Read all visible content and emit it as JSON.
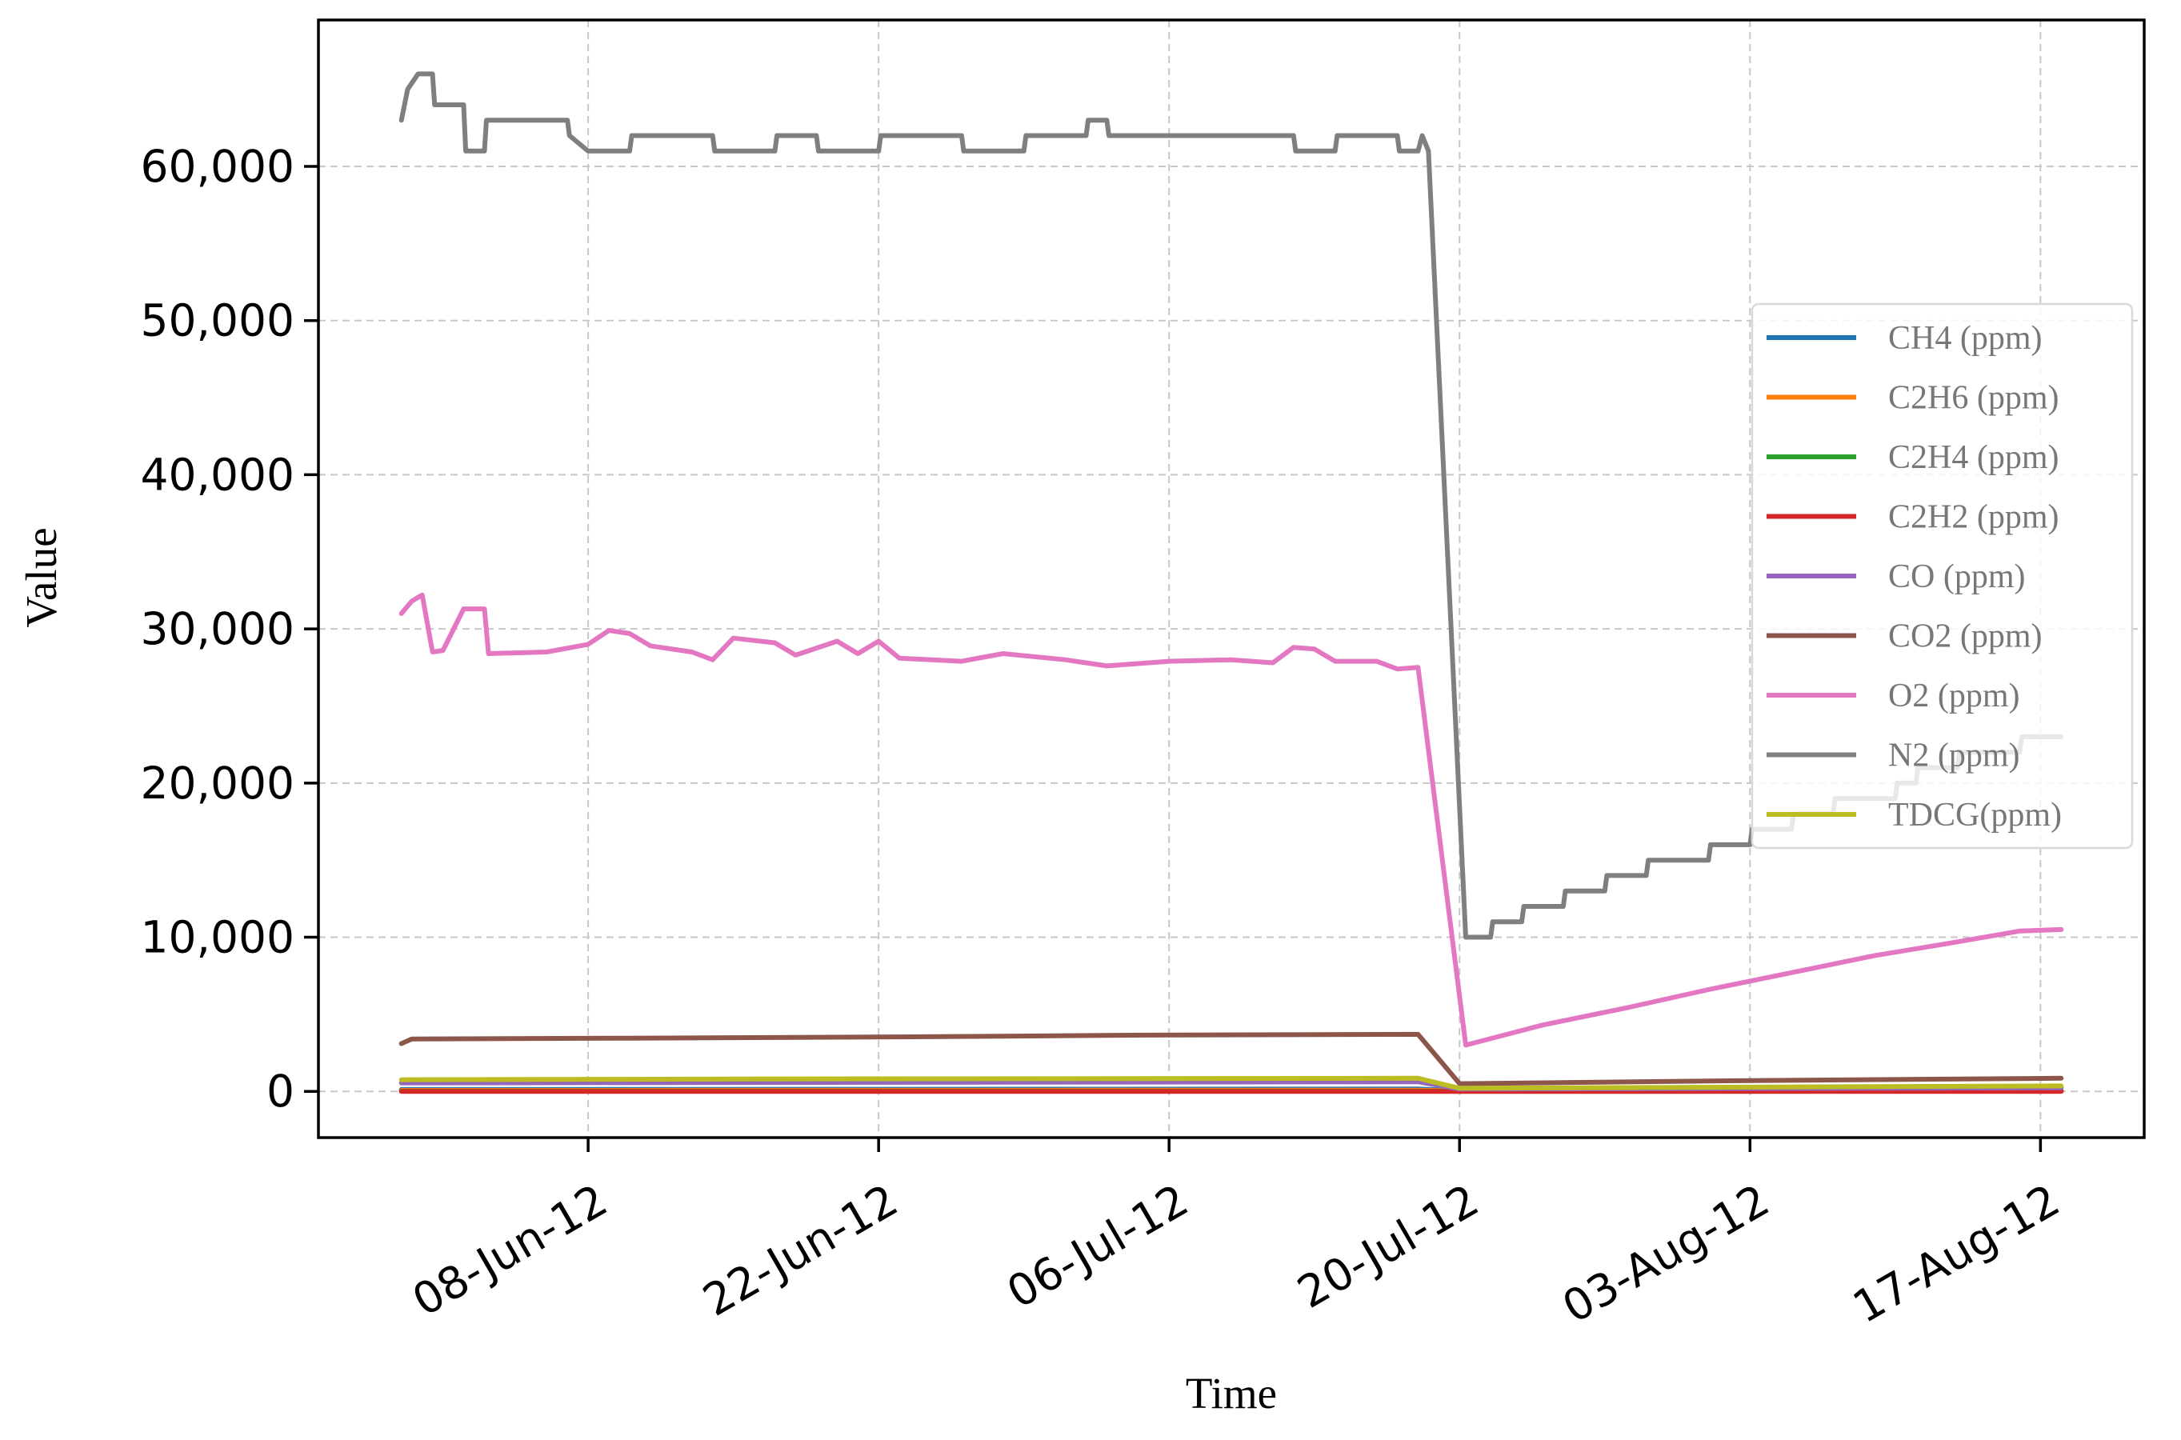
{
  "chart_data": {
    "type": "line",
    "xlabel": "Time",
    "ylabel": "Value",
    "ylim": [
      -3000,
      69500
    ],
    "xlim": [
      "2012-05-26",
      "2012-08-22"
    ],
    "x_ticks": [
      {
        "date": "2012-06-08",
        "label": "08-Jun-12"
      },
      {
        "date": "2012-06-22",
        "label": "22-Jun-12"
      },
      {
        "date": "2012-07-06",
        "label": "06-Jul-12"
      },
      {
        "date": "2012-07-20",
        "label": "20-Jul-12"
      },
      {
        "date": "2012-08-03",
        "label": "03-Aug-12"
      },
      {
        "date": "2012-08-17",
        "label": "17-Aug-12"
      }
    ],
    "y_ticks": [
      {
        "value": 0,
        "label": "0"
      },
      {
        "value": 10000,
        "label": "10,000"
      },
      {
        "value": 20000,
        "label": "20,000"
      },
      {
        "value": 30000,
        "label": "30,000"
      },
      {
        "value": 40000,
        "label": "40,000"
      },
      {
        "value": 50000,
        "label": "50,000"
      },
      {
        "value": 60000,
        "label": "60,000"
      }
    ],
    "grid": true,
    "legend_position": "center-right",
    "series": [
      {
        "name": "CH4 (ppm)",
        "color": "#1f77b4",
        "points": [
          [
            "2012-05-30",
            120
          ],
          [
            "2012-07-18",
            150
          ],
          [
            "2012-07-20",
            40
          ],
          [
            "2012-08-18",
            60
          ]
        ]
      },
      {
        "name": "C2H6 (ppm)",
        "color": "#ff7f0e",
        "points": [
          [
            "2012-05-30",
            60
          ],
          [
            "2012-07-18",
            80
          ],
          [
            "2012-07-20",
            20
          ],
          [
            "2012-08-18",
            30
          ]
        ]
      },
      {
        "name": "C2H4 (ppm)",
        "color": "#2ca02c",
        "points": [
          [
            "2012-05-30",
            10
          ],
          [
            "2012-07-18",
            12
          ],
          [
            "2012-07-20",
            5
          ],
          [
            "2012-08-18",
            8
          ]
        ]
      },
      {
        "name": "C2H2 (ppm)",
        "color": "#d62728",
        "points": [
          [
            "2012-05-30",
            0
          ],
          [
            "2012-08-18",
            0
          ]
        ]
      },
      {
        "name": "CO (ppm)",
        "color": "#9467bd",
        "points": [
          [
            "2012-05-30",
            550
          ],
          [
            "2012-07-18",
            620
          ],
          [
            "2012-07-20",
            150
          ],
          [
            "2012-08-18",
            230
          ]
        ]
      },
      {
        "name": "CO2 (ppm)",
        "color": "#8c564b",
        "points": [
          [
            "2012-05-30",
            3100
          ],
          [
            "2012-05-30.5",
            3400
          ],
          [
            "2012-06-10",
            3450
          ],
          [
            "2012-06-25",
            3550
          ],
          [
            "2012-07-05",
            3650
          ],
          [
            "2012-07-18",
            3700
          ],
          [
            "2012-07-20",
            500
          ],
          [
            "2012-08-03",
            700
          ],
          [
            "2012-08-18",
            850
          ]
        ]
      },
      {
        "name": "O2 (ppm)",
        "color": "#e377c2",
        "points": [
          [
            "2012-05-30",
            31000
          ],
          [
            "2012-05-30.5",
            31800
          ],
          [
            "2012-05-31",
            32200
          ],
          [
            "2012-05-31.5",
            28500
          ],
          [
            "2012-06-01",
            28600
          ],
          [
            "2012-06-02",
            31300
          ],
          [
            "2012-06-03",
            31300
          ],
          [
            "2012-06-03.2",
            28400
          ],
          [
            "2012-06-06",
            28500
          ],
          [
            "2012-06-08",
            29000
          ],
          [
            "2012-06-09",
            29900
          ],
          [
            "2012-06-10",
            29700
          ],
          [
            "2012-06-11",
            28900
          ],
          [
            "2012-06-13",
            28500
          ],
          [
            "2012-06-14",
            28000
          ],
          [
            "2012-06-15",
            29400
          ],
          [
            "2012-06-17",
            29100
          ],
          [
            "2012-06-18",
            28300
          ],
          [
            "2012-06-20",
            29200
          ],
          [
            "2012-06-21",
            28400
          ],
          [
            "2012-06-22",
            29200
          ],
          [
            "2012-06-23",
            28100
          ],
          [
            "2012-06-26",
            27900
          ],
          [
            "2012-06-28",
            28400
          ],
          [
            "2012-07-01",
            28000
          ],
          [
            "2012-07-03",
            27600
          ],
          [
            "2012-07-06",
            27900
          ],
          [
            "2012-07-09",
            28000
          ],
          [
            "2012-07-11",
            27800
          ],
          [
            "2012-07-12",
            28800
          ],
          [
            "2012-07-13",
            28700
          ],
          [
            "2012-07-14",
            27900
          ],
          [
            "2012-07-16",
            27900
          ],
          [
            "2012-07-17",
            27400
          ],
          [
            "2012-07-18",
            27500
          ],
          [
            "2012-07-20.3",
            3000
          ],
          [
            "2012-07-24",
            4300
          ],
          [
            "2012-07-28",
            5400
          ],
          [
            "2012-08-01",
            6600
          ],
          [
            "2012-08-05",
            7700
          ],
          [
            "2012-08-09",
            8800
          ],
          [
            "2012-08-13",
            9700
          ],
          [
            "2012-08-16",
            10400
          ],
          [
            "2012-08-18",
            10500
          ]
        ]
      },
      {
        "name": "N2 (ppm)",
        "color": "#7f7f7f",
        "points": [
          [
            "2012-05-30",
            63000
          ],
          [
            "2012-05-30.3",
            65000
          ],
          [
            "2012-05-30.8",
            66000
          ],
          [
            "2012-05-31.5",
            66000
          ],
          [
            "2012-05-31.6",
            64000
          ],
          [
            "2012-06-02",
            64000
          ],
          [
            "2012-06-02.1",
            61000
          ],
          [
            "2012-06-03",
            61000
          ],
          [
            "2012-06-03.1",
            63000
          ],
          [
            "2012-06-07",
            63000
          ],
          [
            "2012-06-07.1",
            62000
          ],
          [
            "2012-06-08",
            61000
          ],
          [
            "2012-06-10",
            61000
          ],
          [
            "2012-06-10.1",
            62000
          ],
          [
            "2012-06-14",
            62000
          ],
          [
            "2012-06-14.1",
            61000
          ],
          [
            "2012-06-17",
            61000
          ],
          [
            "2012-06-17.1",
            62000
          ],
          [
            "2012-06-19",
            62000
          ],
          [
            "2012-06-19.1",
            61000
          ],
          [
            "2012-06-22",
            61000
          ],
          [
            "2012-06-22.1",
            62000
          ],
          [
            "2012-06-26",
            62000
          ],
          [
            "2012-06-26.1",
            61000
          ],
          [
            "2012-06-29",
            61000
          ],
          [
            "2012-06-29.1",
            62000
          ],
          [
            "2012-07-02",
            62000
          ],
          [
            "2012-07-02.1",
            63000
          ],
          [
            "2012-07-03",
            63000
          ],
          [
            "2012-07-03.1",
            62000
          ],
          [
            "2012-07-12",
            62000
          ],
          [
            "2012-07-12.1",
            61000
          ],
          [
            "2012-07-14",
            61000
          ],
          [
            "2012-07-14.1",
            62000
          ],
          [
            "2012-07-17",
            62000
          ],
          [
            "2012-07-17.1",
            61000
          ],
          [
            "2012-07-18",
            61000
          ],
          [
            "2012-07-18.2",
            62000
          ],
          [
            "2012-07-18.5",
            61000
          ],
          [
            "2012-07-20.3",
            10000
          ],
          [
            "2012-07-21.5",
            10000
          ],
          [
            "2012-07-21.6",
            11000
          ],
          [
            "2012-07-23",
            11000
          ],
          [
            "2012-07-23.1",
            12000
          ],
          [
            "2012-07-25",
            12000
          ],
          [
            "2012-07-25.1",
            13000
          ],
          [
            "2012-07-27",
            13000
          ],
          [
            "2012-07-27.1",
            14000
          ],
          [
            "2012-07-29",
            14000
          ],
          [
            "2012-07-29.1",
            15000
          ],
          [
            "2012-08-01",
            15000
          ],
          [
            "2012-08-01.1",
            16000
          ],
          [
            "2012-08-03",
            16000
          ],
          [
            "2012-08-03.1",
            17000
          ],
          [
            "2012-08-05",
            17000
          ],
          [
            "2012-08-05.1",
            18000
          ],
          [
            "2012-08-07",
            18000
          ],
          [
            "2012-08-07.1",
            19000
          ],
          [
            "2012-08-10",
            19000
          ],
          [
            "2012-08-10.1",
            20000
          ],
          [
            "2012-08-11",
            20000
          ],
          [
            "2012-08-11.1",
            21000
          ],
          [
            "2012-08-13",
            21000
          ],
          [
            "2012-08-13.1",
            22000
          ],
          [
            "2012-08-16",
            22000
          ],
          [
            "2012-08-16.1",
            23000
          ],
          [
            "2012-08-18",
            23000
          ]
        ]
      },
      {
        "name": "TDCG(ppm)",
        "color": "#bcbd22",
        "points": [
          [
            "2012-05-30",
            750
          ],
          [
            "2012-06-15",
            800
          ],
          [
            "2012-07-18",
            850
          ],
          [
            "2012-07-20",
            200
          ],
          [
            "2012-08-18",
            350
          ]
        ]
      }
    ]
  }
}
